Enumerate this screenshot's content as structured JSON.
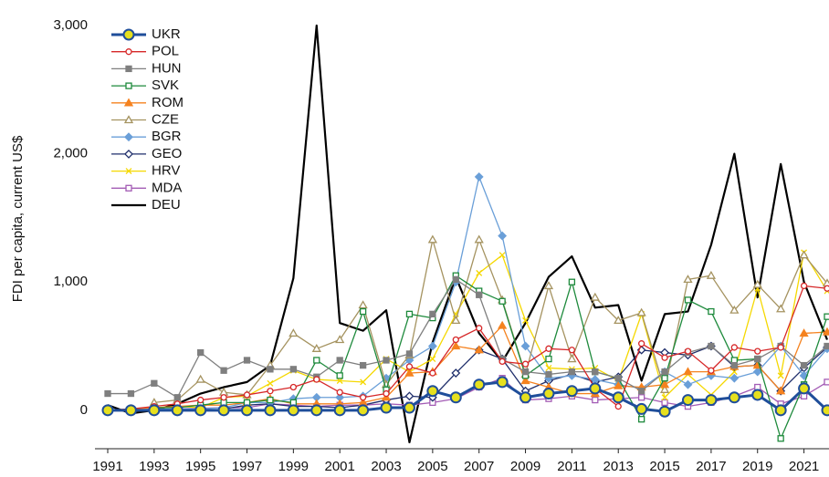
{
  "chart_data": {
    "type": "line",
    "y_label": "FDI per capita, current US$",
    "x": [
      1991,
      1992,
      1993,
      1994,
      1995,
      1996,
      1997,
      1998,
      1999,
      2000,
      2001,
      2002,
      2003,
      2004,
      2005,
      2006,
      2007,
      2008,
      2009,
      2010,
      2011,
      2012,
      2013,
      2014,
      2015,
      2016,
      2017,
      2018,
      2019,
      2020,
      2021,
      2022
    ],
    "xlim": [
      1991,
      2022
    ],
    "xticks": [
      1991,
      1993,
      1995,
      1997,
      1999,
      2001,
      2003,
      2005,
      2007,
      2009,
      2011,
      2013,
      2015,
      2017,
      2019,
      2021
    ],
    "ylim": [
      -300,
      3000
    ],
    "yticks": [
      0,
      {
        "value": 1000,
        "label": "1,000"
      },
      {
        "value": 2000,
        "label": "2,000"
      },
      {
        "value": 3000,
        "label": "3,000"
      }
    ],
    "grid": false,
    "legend": "top-left",
    "series": [
      {
        "name": "UKR",
        "color": "#1f4e9a",
        "marker": "circle-filled",
        "marker_fill": "#e6e01e",
        "values": [
          0,
          0,
          0,
          0,
          0,
          0,
          0,
          0,
          0,
          0,
          0,
          0,
          20,
          20,
          150,
          100,
          200,
          220,
          100,
          130,
          150,
          170,
          100,
          10,
          -10,
          80,
          80,
          100,
          120,
          0,
          170,
          0
        ]
      },
      {
        "name": "POL",
        "color": "#d62728",
        "marker": "circle",
        "values": [
          0,
          10,
          30,
          50,
          80,
          100,
          120,
          150,
          180,
          240,
          140,
          100,
          130,
          340,
          290,
          550,
          640,
          380,
          360,
          480,
          470,
          170,
          30,
          520,
          410,
          460,
          310,
          490,
          460,
          490,
          970,
          950
        ]
      },
      {
        "name": "HUN",
        "color": "#7f7f7f",
        "marker": "square-filled",
        "values": [
          130,
          130,
          210,
          100,
          450,
          310,
          390,
          320,
          320,
          260,
          390,
          350,
          390,
          440,
          750,
          1020,
          900,
          400,
          300,
          280,
          300,
          300,
          250,
          150,
          300,
          450,
          500,
          350,
          400,
          500,
          350,
          500
        ]
      },
      {
        "name": "SVK",
        "color": "#1e8a3c",
        "marker": "square",
        "values": [
          null,
          null,
          20,
          20,
          40,
          60,
          60,
          80,
          60,
          390,
          270,
          770,
          160,
          750,
          720,
          1050,
          930,
          850,
          270,
          400,
          1000,
          300,
          250,
          -70,
          250,
          860,
          770,
          390,
          400,
          -220,
          200,
          730
        ]
      },
      {
        "name": "ROM",
        "color": "#f5821f",
        "marker": "triangle-filled",
        "values": [
          0,
          10,
          20,
          30,
          40,
          40,
          60,
          90,
          50,
          50,
          50,
          60,
          100,
          290,
          300,
          500,
          470,
          660,
          230,
          180,
          130,
          130,
          190,
          180,
          200,
          300,
          300,
          340,
          350,
          150,
          600,
          610
        ]
      },
      {
        "name": "CZE",
        "color": "#a59360",
        "marker": "triangle",
        "values": [
          null,
          null,
          60,
          80,
          240,
          140,
          120,
          350,
          600,
          480,
          550,
          820,
          200,
          430,
          1330,
          700,
          1330,
          860,
          280,
          970,
          400,
          880,
          700,
          760,
          160,
          1020,
          1050,
          780,
          980,
          790,
          1210,
          990
        ]
      },
      {
        "name": "BGR",
        "color": "#6a9fd8",
        "marker": "diamond-filled",
        "values": [
          0,
          0,
          10,
          10,
          10,
          20,
          60,
          60,
          90,
          100,
          100,
          110,
          250,
          390,
          500,
          1000,
          1820,
          1360,
          500,
          250,
          270,
          240,
          200,
          170,
          300,
          200,
          270,
          250,
          300,
          500,
          270,
          480
        ]
      },
      {
        "name": "GEO",
        "color": "#1f2e6b",
        "marker": "diamond",
        "values": [
          null,
          null,
          null,
          null,
          null,
          10,
          40,
          50,
          30,
          30,
          20,
          40,
          80,
          110,
          100,
          290,
          470,
          400,
          150,
          230,
          280,
          220,
          260,
          470,
          450,
          430,
          500,
          340,
          350,
          150,
          330,
          490
        ]
      },
      {
        "name": "HRV",
        "color": "#f5d800",
        "marker": "x",
        "values": [
          null,
          null,
          20,
          30,
          20,
          100,
          110,
          210,
          310,
          240,
          230,
          220,
          400,
          300,
          400,
          750,
          1070,
          1210,
          700,
          330,
          320,
          330,
          230,
          750,
          100,
          280,
          120,
          300,
          950,
          270,
          1230,
          930
        ]
      },
      {
        "name": "MDA",
        "color": "#a35cb5",
        "marker": "square",
        "values": [
          null,
          null,
          5,
          10,
          15,
          20,
          20,
          50,
          40,
          30,
          40,
          40,
          50,
          40,
          60,
          90,
          180,
          250,
          80,
          90,
          110,
          80,
          90,
          100,
          60,
          30,
          60,
          110,
          180,
          50,
          110,
          220
        ]
      },
      {
        "name": "DEU",
        "color": "#000000",
        "marker": "none",
        "values": [
          40,
          -25,
          0,
          50,
          130,
          180,
          220,
          350,
          1030,
          3000,
          680,
          620,
          780,
          -250,
          530,
          1040,
          600,
          380,
          680,
          1040,
          1200,
          800,
          820,
          230,
          750,
          770,
          1290,
          2000,
          880,
          1920,
          1000,
          550
        ]
      }
    ]
  }
}
